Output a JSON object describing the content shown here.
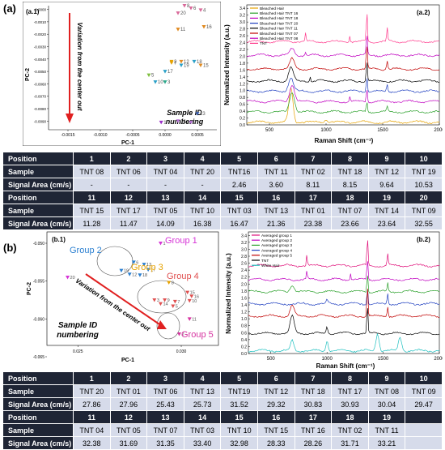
{
  "panel_a": {
    "label": "(a)"
  },
  "panel_b": {
    "label": "(b)"
  },
  "pca_a": {
    "tag": "(a.1)",
    "xlabel": "PC-1",
    "ylabel": "PC-2",
    "arrow_text": "Variation from the center out",
    "id_text_line1": "Sample ID",
    "id_text_line2": "numbering",
    "xticks": [
      "-0.0015",
      "-0.0010",
      "-0.0005",
      "0.0000",
      "0.0005"
    ],
    "yticks": [
      "0.0000",
      "-0.0010",
      "-0.0020",
      "-0.0030",
      "-0.0040",
      "-0.0050",
      "-0.0060",
      "-0.0070",
      "-0.0080",
      "-0.0090"
    ],
    "points": [
      {
        "id": "1",
        "x": -6e-05,
        "y": -0.0091,
        "color": "#9b30c8"
      },
      {
        "id": "2",
        "x": 0.0001,
        "y": -0.0042,
        "color": "#e6a200"
      },
      {
        "id": "3",
        "x": 0.0,
        "y": -0.00585,
        "color": "#2aa88a"
      },
      {
        "id": "4",
        "x": 0.00055,
        "y": -5e-05,
        "color": "#d96a9a"
      },
      {
        "id": "5",
        "x": -0.00025,
        "y": -0.0053,
        "color": "#7fbf3f"
      },
      {
        "id": "6",
        "x": 0.0004,
        "y": 0.0001,
        "color": "#d96a9a"
      },
      {
        "id": "7",
        "x": 0.0001,
        "y": -0.0043,
        "color": "#e6a200"
      },
      {
        "id": "8",
        "x": 0.0003,
        "y": 0.0003,
        "color": "#d96a9a"
      },
      {
        "id": "9",
        "x": 0.0004,
        "y": -0.0091,
        "color": "#b06fd0"
      },
      {
        "id": "10",
        "x": -0.00015,
        "y": -0.00585,
        "color": "#2aa0c8"
      },
      {
        "id": "11",
        "x": 0.0002,
        "y": -0.0016,
        "color": "#e08a20"
      },
      {
        "id": "12",
        "x": 0.00025,
        "y": -0.0042,
        "color": "#e08a20"
      },
      {
        "id": "13",
        "x": 0.0005,
        "y": -0.0084,
        "color": "#3a5fb0"
      },
      {
        "id": "14",
        "x": 0.0002,
        "y": -0.009,
        "color": "#b06fd0"
      },
      {
        "id": "15",
        "x": 0.00055,
        "y": -0.0045,
        "color": "#e08a20"
      },
      {
        "id": "16",
        "x": 0.0006,
        "y": -0.0014,
        "color": "#e08a20"
      },
      {
        "id": "17",
        "x": 0.0,
        "y": -0.005,
        "color": "#2aa0c8"
      },
      {
        "id": "18",
        "x": 0.00045,
        "y": -0.0042,
        "color": "#2aa0c8"
      },
      {
        "id": "19",
        "x": 0.00025,
        "y": -0.0045,
        "color": "#2aa0c8"
      },
      {
        "id": "20",
        "x": 0.0002,
        "y": -0.0003,
        "color": "#d96a9a"
      }
    ]
  },
  "raman_a": {
    "tag": "(a.2)",
    "xlabel": "Raman Shift (cm⁻¹)",
    "ylabel": "Normalized Intensity (a.u.)",
    "xticks": [
      "500",
      "1000",
      "1500",
      "2000"
    ],
    "yticks": [
      "0.0",
      "0.2",
      "0.4",
      "0.6",
      "0.8",
      "1.0",
      "1.2",
      "1.4",
      "1.6",
      "1.8",
      "2.0",
      "2.2",
      "2.4",
      "2.6",
      "2.8",
      "3.0",
      "3.2",
      "3.4"
    ],
    "legend": [
      {
        "name": "Bleached Hair",
        "color": "#e6a200"
      },
      {
        "name": "Bleached Hair TNT 16",
        "color": "#2aa02a"
      },
      {
        "name": "Bleached Hair TNT 18",
        "color": "#c000c0"
      },
      {
        "name": "Bleached Hair TNT 20",
        "color": "#1f3fc0"
      },
      {
        "name": "Bleached Hair TNT 11",
        "color": "#000000"
      },
      {
        "name": "Bleached Hair TNT 07",
        "color": "#c00000"
      },
      {
        "name": "Bleached Hair TNT 08",
        "color": "#c000c0"
      },
      {
        "name": "TNT",
        "color": "#ff3a8c"
      }
    ]
  },
  "table_a": {
    "header_label": "Position",
    "row_labels": [
      "Sample",
      "Signal Area (cm/s)"
    ],
    "block1": {
      "positions": [
        "1",
        "2",
        "3",
        "4",
        "5",
        "6",
        "7",
        "8",
        "9",
        "10"
      ],
      "samples": [
        "TNT 08",
        "TNT 06",
        "TNT 04",
        "TNT 20",
        "TNT16",
        "TNT 11",
        "TNT 02",
        "TNT 18",
        "TNT 12",
        "TNT 19"
      ],
      "areas": [
        "-",
        "-",
        "-",
        "-",
        "2.46",
        "3.60",
        "8.11",
        "8.15",
        "9.64",
        "10.53"
      ]
    },
    "block2": {
      "positions": [
        "11",
        "12",
        "13",
        "14",
        "15",
        "16",
        "17",
        "18",
        "19",
        "20"
      ],
      "samples": [
        "TNT 15",
        "TNT 17",
        "TNT 05",
        "TNT 10",
        "TNT 03",
        "TNT 13",
        "TNT 01",
        "TNT 07",
        "TNT 14",
        "TNT 09"
      ],
      "areas": [
        "11.28",
        "11.47",
        "14.09",
        "16.38",
        "16.47",
        "21.36",
        "23.38",
        "23.66",
        "23.64",
        "32.55"
      ]
    }
  },
  "pca_b": {
    "tag": "(b.1)",
    "xlabel": "PC-1",
    "ylabel": "PC-2",
    "arrow_text": "Variation from the center out",
    "id_text_line1": "Sample ID",
    "id_text_line2": "numbering",
    "xticks": [
      "0.025",
      "0.030"
    ],
    "yticks": [
      "-0.050",
      "-0.055",
      "-0.060",
      "-0.065"
    ],
    "groups": [
      {
        "name": "Group 1",
        "color": "#d633d6"
      },
      {
        "name": "Group 2",
        "color": "#2a7fd0"
      },
      {
        "name": "Group 3",
        "color": "#e6a200"
      },
      {
        "name": "Group 4",
        "color": "#e05050"
      },
      {
        "name": "Group 5",
        "color": "#d633a0"
      }
    ],
    "points": [
      {
        "id": "1",
        "x": 0.029,
        "y": -0.05,
        "color": "#d633d6"
      },
      {
        "id": "20",
        "x": 0.0245,
        "y": -0.0545,
        "color": "#d633d6"
      },
      {
        "id": "6",
        "x": 0.0277,
        "y": -0.0525,
        "color": "#2a7fd0"
      },
      {
        "id": "13",
        "x": 0.0282,
        "y": -0.0528,
        "color": "#2a7fd0"
      },
      {
        "id": "19",
        "x": 0.0271,
        "y": -0.0536,
        "color": "#2a7fd0"
      },
      {
        "id": "17",
        "x": 0.0284,
        "y": -0.0535,
        "color": "#2a7fd0"
      },
      {
        "id": "12",
        "x": 0.0275,
        "y": -0.0541,
        "color": "#2a7fd0"
      },
      {
        "id": "18",
        "x": 0.028,
        "y": -0.0542,
        "color": "#2a7fd0"
      },
      {
        "id": "8",
        "x": 0.0294,
        "y": -0.0552,
        "color": "#e6a200"
      },
      {
        "id": "15",
        "x": 0.0303,
        "y": -0.0565,
        "color": "#e05050"
      },
      {
        "id": "16",
        "x": 0.0305,
        "y": -0.057,
        "color": "#e05050"
      },
      {
        "id": "3",
        "x": 0.0287,
        "y": -0.0575,
        "color": "#e05050"
      },
      {
        "id": "9",
        "x": 0.0292,
        "y": -0.0575,
        "color": "#e05050"
      },
      {
        "id": "7",
        "x": 0.0297,
        "y": -0.0577,
        "color": "#e05050"
      },
      {
        "id": "10",
        "x": 0.0304,
        "y": -0.0576,
        "color": "#e05050"
      },
      {
        "id": "14",
        "x": 0.029,
        "y": -0.058,
        "color": "#e05050"
      },
      {
        "id": "5",
        "x": 0.0296,
        "y": -0.0583,
        "color": "#e05050"
      },
      {
        "id": "11",
        "x": 0.0304,
        "y": -0.06,
        "color": "#d633a0"
      },
      {
        "id": "2",
        "x": 0.0299,
        "y": -0.062,
        "color": "#d633a0"
      }
    ]
  },
  "raman_b": {
    "tag": "(b.2)",
    "xlabel": "Raman Shift (cm⁻¹)",
    "ylabel": "Normalized Intensity (a.u.)",
    "xticks": [
      "500",
      "1000",
      "1500",
      "2000"
    ],
    "yticks": [
      "0.0",
      "0.2",
      "0.4",
      "0.6",
      "0.8",
      "1.0",
      "1.2",
      "1.4",
      "1.6",
      "1.8",
      "2.0",
      "2.2",
      "2.4",
      "2.6",
      "2.8",
      "3.0",
      "3.2",
      "3.4"
    ],
    "legend": [
      {
        "name": "Averaged group 1",
        "color": "#e0107a"
      },
      {
        "name": "Averaged group 2",
        "color": "#c000c0"
      },
      {
        "name": "Averaged group 3",
        "color": "#2aa02a"
      },
      {
        "name": "Averaged group 4",
        "color": "#1f3fc0"
      },
      {
        "name": "Averaged group 5",
        "color": "#c00000"
      },
      {
        "name": "TNT",
        "color": "#000000"
      },
      {
        "name": "White Hair",
        "color": "#1fc0c0"
      }
    ]
  },
  "table_b": {
    "header_label": "Position",
    "row_labels": [
      "Sample",
      "Signal Area (cm/s)"
    ],
    "block1": {
      "positions": [
        "1",
        "2",
        "3",
        "4",
        "5",
        "6",
        "7",
        "8",
        "9",
        "10"
      ],
      "samples": [
        "TNT 20",
        "TNT 01",
        "TNT 06",
        "TNT 13",
        "TNT19",
        "TNT 12",
        "TNT 18",
        "TNT 17",
        "TNT 08",
        "TNT 09"
      ],
      "areas": [
        "27.86",
        "27.96",
        "25.43",
        "25.73",
        "31.52",
        "29.32",
        "30.83",
        "30.93",
        "30.04",
        "29.47"
      ]
    },
    "block2": {
      "positions": [
        "11",
        "12",
        "13",
        "14",
        "15",
        "16",
        "17",
        "18",
        "19",
        ""
      ],
      "samples": [
        "TNT 04",
        "TNT 05",
        "TNT 07",
        "TNT 03",
        "TNT 10",
        "TNT 15",
        "TNT 16",
        "TNT 02",
        "TNT 11",
        ""
      ],
      "areas": [
        "32.38",
        "31.69",
        "31.35",
        "33.40",
        "32.98",
        "28.33",
        "28.26",
        "31.71",
        "33.21",
        ""
      ]
    }
  }
}
